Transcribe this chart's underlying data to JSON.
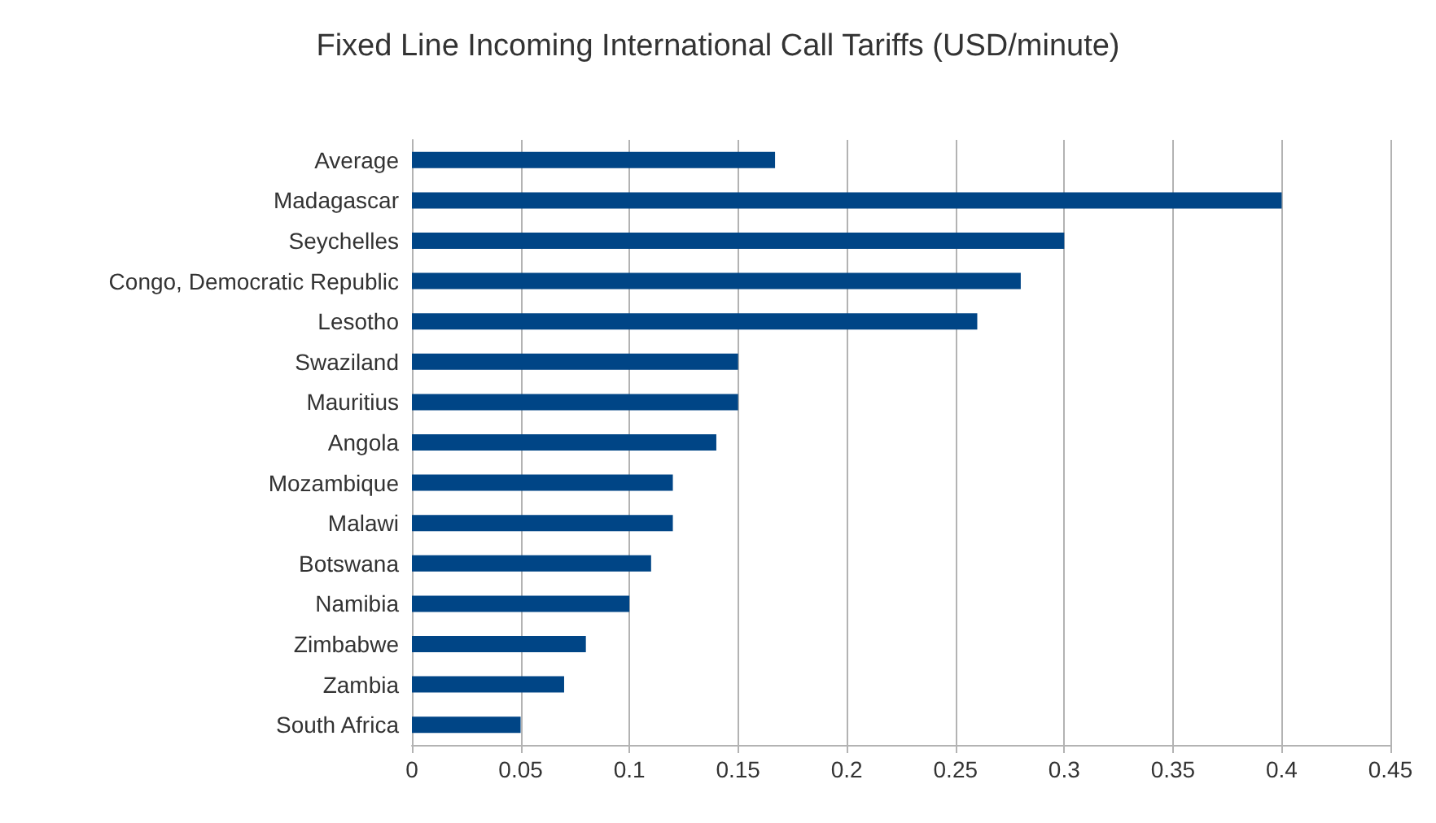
{
  "chart_data": {
    "type": "bar",
    "orientation": "horizontal",
    "title": "Fixed Line Incoming International Call Tariffs (USD/minute)",
    "categories": [
      "Average",
      "Madagascar",
      "Seychelles",
      "Congo, Democratic Republic",
      "Lesotho",
      "Swaziland",
      "Mauritius",
      "Angola",
      "Mozambique",
      "Malawi",
      "Botswana",
      "Namibia",
      "Zimbabwe",
      "Zambia",
      "South Africa"
    ],
    "values": [
      0.167,
      0.4,
      0.3,
      0.28,
      0.26,
      0.15,
      0.15,
      0.14,
      0.12,
      0.12,
      0.11,
      0.1,
      0.08,
      0.07,
      0.05
    ],
    "color": "#004586",
    "xlim": [
      0,
      0.45
    ],
    "xticks": [
      0,
      0.05,
      0.1,
      0.15,
      0.2,
      0.25,
      0.3,
      0.35,
      0.4,
      0.45
    ],
    "grid": "x"
  }
}
